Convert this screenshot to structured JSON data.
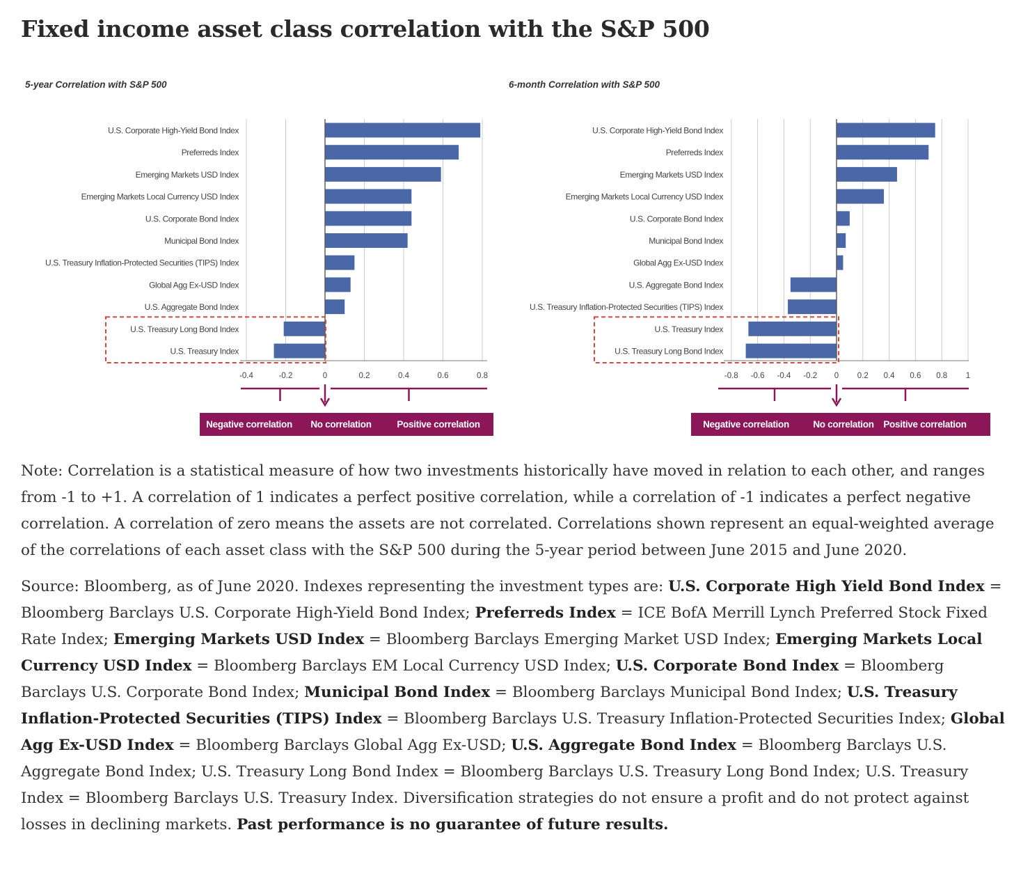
{
  "page": {
    "title": "Fixed income asset class correlation with the S&P 500"
  },
  "colors": {
    "bar": "#4a68a8",
    "accent": "#8c1658",
    "highlight": "#d24a3c",
    "grid": "#cccccc"
  },
  "chart_data": [
    {
      "type": "bar",
      "orientation": "horizontal",
      "title": "5-year Correlation with S&P 500",
      "categories": [
        "U.S. Corporate High-Yield Bond Index",
        "Preferreds Index",
        "Emerging Markets USD Index",
        "Emerging Markets Local Currency USD Index",
        "U.S. Corporate Bond Index",
        "Municipal Bond Index",
        "U.S. Treasury Inflation-Protected Securities (TIPS) Index",
        "Global Agg Ex-USD Index",
        "U.S. Aggregate Bond Index",
        "U.S. Treasury Long Bond Index",
        "U.S. Treasury Index"
      ],
      "values": [
        0.79,
        0.68,
        0.59,
        0.44,
        0.44,
        0.42,
        0.15,
        0.13,
        0.1,
        -0.21,
        -0.26
      ],
      "xlim": [
        -0.4,
        0.8
      ],
      "ticks": [
        -0.4,
        -0.2,
        0,
        0.2,
        0.4,
        0.6,
        0.8
      ],
      "tick_labels": [
        "-0.4",
        "-0.2",
        "0",
        "0.2",
        "0.4",
        "0.6",
        "0.8"
      ],
      "highlighted": [
        "U.S. Treasury Long Bond Index",
        "U.S. Treasury Index"
      ],
      "legend": [
        "Negative correlation",
        "No correlation",
        "Positive correlation"
      ]
    },
    {
      "type": "bar",
      "orientation": "horizontal",
      "title": "6-month Correlation with S&P 500",
      "categories": [
        "U.S. Corporate High-Yield Bond Index",
        "Preferreds Index",
        "Emerging Markets USD Index",
        "Emerging Markets Local Currency USD Index",
        "U.S. Corporate Bond Index",
        "Municipal Bond Index",
        "Global Agg Ex-USD Index",
        "U.S. Aggregate Bond Index",
        "U.S. Treasury Inflation-Protected Securities (TIPS) Index",
        "U.S. Treasury Index",
        "U.S. Treasury Long Bond Index"
      ],
      "values": [
        0.75,
        0.7,
        0.46,
        0.36,
        0.1,
        0.07,
        0.05,
        -0.35,
        -0.37,
        -0.67,
        -0.69
      ],
      "xlim": [
        -0.8,
        1.0
      ],
      "ticks": [
        -0.8,
        -0.6,
        -0.4,
        -0.2,
        0,
        0.2,
        0.4,
        0.6,
        0.8,
        1
      ],
      "tick_labels": [
        "-0.8",
        "-0.6",
        "-0.4",
        "-0.2",
        "0",
        "0.2",
        "0.4",
        "0.6",
        "0.8",
        "1"
      ],
      "highlighted": [
        "U.S. Treasury Index",
        "U.S. Treasury Long Bond Index"
      ],
      "legend": [
        "Negative correlation",
        "No correlation",
        "Positive correlation"
      ]
    }
  ],
  "note": "Note: Correlation is a statistical measure of how two investments historically have moved in relation to each other, and ranges from -1 to +1. A correlation of 1 indicates a perfect positive correlation, while a correlation of -1 indicates a perfect negative correlation. A correlation of zero means the assets are not correlated. Correlations shown represent an equal-weighted average of the correlations of each asset class with the S&P 500 during the 5-year period between June 2015 and June 2020.",
  "source": {
    "intro": "Source: Bloomberg, as of June 2020. Indexes representing the investment types are: ",
    "segments": [
      {
        "b": "U.S. Corporate High Yield Bond Index",
        "t": " = Bloomberg Barclays U.S. Corporate High-Yield Bond Index; "
      },
      {
        "b": "Preferreds Index",
        "t": " = ICE BofA Merrill Lynch Preferred Stock Fixed Rate Index; "
      },
      {
        "b": "Emerging Markets USD Index",
        "t": " = Bloomberg Barclays Emerging Market USD Index; "
      },
      {
        "b": "Emerging Markets Local Currency USD Index",
        "t": " = Bloomberg Barclays EM Local Currency USD Index; "
      },
      {
        "b": "U.S. Corporate Bond Index",
        "t": " = Bloomberg Barclays U.S. Corporate Bond Index; "
      },
      {
        "b": "Municipal Bond Index",
        "t": " = Bloomberg Barclays Municipal Bond Index; "
      },
      {
        "b": "U.S. Treasury Inflation-Protected Securities (TIPS) Index",
        "t": " = Bloomberg Barclays U.S. Treasury Inflation-Protected Securities Index; "
      },
      {
        "b": "Global Agg Ex-USD Index",
        "t": " = Bloomberg Barclays Global Agg Ex-USD; "
      },
      {
        "b": "U.S. Aggregate Bond Index",
        "t": " = Bloomberg Barclays U.S. Aggregate Bond Index;  U.S. Treasury Long Bond Index = Bloomberg Barclays U.S. Treasury Long Bond Index; U.S. Treasury Index = Bloomberg Barclays U.S. Treasury Index.  Diversification strategies do not ensure a profit and do not protect against losses in declining markets. "
      }
    ],
    "closing": "Past performance is no guarantee of future results."
  }
}
